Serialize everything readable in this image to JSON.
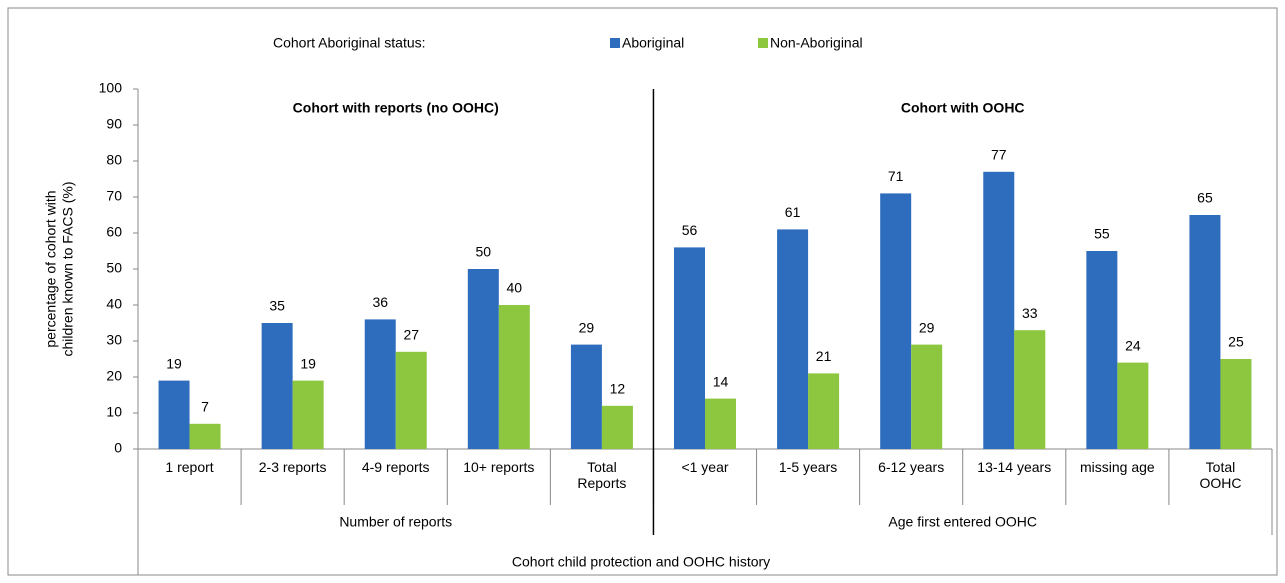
{
  "chart_data": {
    "type": "bar",
    "legend_title": "Cohort Aboriginal status:",
    "y_label": [
      "percentage of cohort with",
      "children known to FACS (%)"
    ],
    "x_label": "Cohort child protection and OOHC history",
    "ylim": [
      0,
      100
    ],
    "yticks": [
      0,
      10,
      20,
      30,
      40,
      50,
      60,
      70,
      80,
      90,
      100
    ],
    "series": [
      {
        "name": "Aboriginal",
        "color": "#2e6dbd"
      },
      {
        "name": "Non-Aboriginal",
        "color": "#8dc63f"
      }
    ],
    "groups": [
      {
        "title": "Cohort with reports (no OOHC)",
        "name": "Number of reports",
        "categories": [
          "1 report",
          "2-3 reports",
          "4-9 reports",
          "10+ reports",
          "Total\nReports"
        ],
        "series": [
          {
            "values": [
              19,
              35,
              36,
              50,
              29
            ]
          },
          {
            "values": [
              7,
              19,
              27,
              40,
              12
            ]
          }
        ]
      },
      {
        "title": "Cohort with OOHC",
        "name": "Age first entered OOHC",
        "categories": [
          "<1 year",
          "1-5 years",
          "6-12 years",
          "13-14 years",
          "missing age",
          "Total\nOOHC"
        ],
        "series": [
          {
            "values": [
              56,
              61,
              71,
              77,
              55,
              65
            ]
          },
          {
            "values": [
              14,
              21,
              29,
              33,
              24,
              25
            ]
          }
        ]
      }
    ]
  }
}
